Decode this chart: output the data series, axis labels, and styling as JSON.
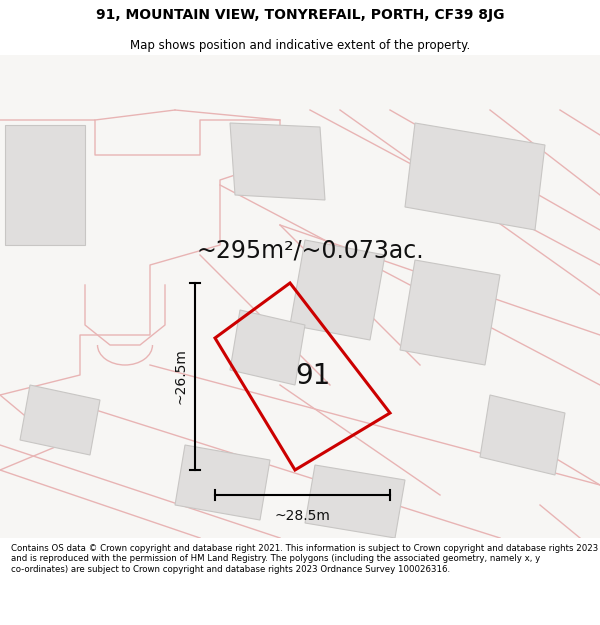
{
  "title": "91, MOUNTAIN VIEW, TONYREFAIL, PORTH, CF39 8JG",
  "subtitle": "Map shows position and indicative extent of the property.",
  "area_text": "~295m²/~0.073ac.",
  "width_label": "~28.5m",
  "height_label": "~26.5m",
  "plot_number": "91",
  "map_bg": "#f7f6f4",
  "building_fill": "#e0dedd",
  "building_edge": "#c8c6c4",
  "road_color": "#e8b4b4",
  "road_fill": "#f5e8e8",
  "highlight_color": "#cc0000",
  "footer_text": "Contains OS data © Crown copyright and database right 2021. This information is subject to Crown copyright and database rights 2023 and is reproduced with the permission of HM Land Registry. The polygons (including the associated geometry, namely x, y co-ordinates) are subject to Crown copyright and database rights 2023 Ordnance Survey 100026316.",
  "title_fontsize": 10,
  "subtitle_fontsize": 8.5,
  "area_fontsize": 17,
  "plot_label_fontsize": 20,
  "dim_fontsize": 10,
  "footer_fontsize": 6.2
}
